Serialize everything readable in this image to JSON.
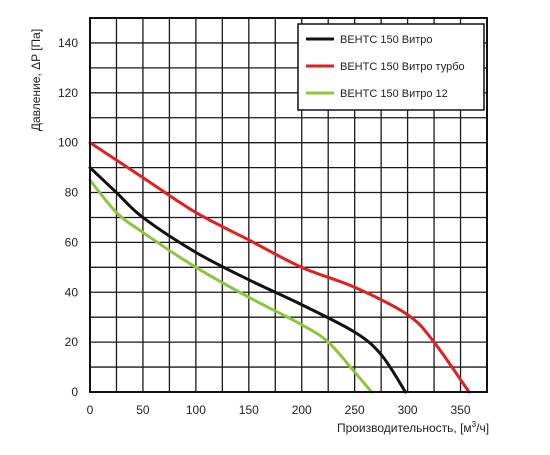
{
  "chart_data": {
    "type": "line",
    "xlabel_main": "Производительность, [м",
    "xlabel_sup": "3",
    "xlabel_end": "/ч]",
    "ylabel": "Давление, ΔP [Па]",
    "xlim": [
      0,
      375
    ],
    "ylim": [
      0,
      150
    ],
    "x_major_ticks": [
      0,
      50,
      100,
      150,
      200,
      250,
      300,
      350
    ],
    "x_tick_labels": [
      "0",
      "50",
      "100",
      "150",
      "200",
      "250",
      "300",
      "350"
    ],
    "y_major_ticks": [
      0,
      20,
      40,
      60,
      80,
      100,
      120,
      140
    ],
    "y_tick_labels": [
      "0",
      "20",
      "40",
      "60",
      "80",
      "100",
      "120",
      "140"
    ],
    "grid": true,
    "grid_minor_step_x": 25,
    "grid_minor_step_y": 10,
    "legend_position": "top-right",
    "series": [
      {
        "name": "ВЕНТС 150 Витро",
        "color": "#111111",
        "points": [
          [
            0,
            90
          ],
          [
            25,
            80
          ],
          [
            50,
            70
          ],
          [
            100,
            56
          ],
          [
            150,
            45
          ],
          [
            200,
            35
          ],
          [
            250,
            24
          ],
          [
            275,
            15
          ],
          [
            298,
            0
          ]
        ]
      },
      {
        "name": "ВЕНТС 150 Витро турбо",
        "color": "#e02020",
        "points": [
          [
            0,
            100
          ],
          [
            50,
            86
          ],
          [
            100,
            72
          ],
          [
            150,
            61
          ],
          [
            200,
            50
          ],
          [
            250,
            42
          ],
          [
            300,
            31
          ],
          [
            325,
            20
          ],
          [
            358,
            0
          ]
        ]
      },
      {
        "name": "ВЕНТС 150 Витро 12",
        "color": "#8cc63f",
        "points": [
          [
            0,
            85
          ],
          [
            25,
            72
          ],
          [
            50,
            64
          ],
          [
            100,
            50
          ],
          [
            150,
            38
          ],
          [
            200,
            27
          ],
          [
            225,
            20
          ],
          [
            250,
            8
          ],
          [
            266,
            0
          ]
        ]
      }
    ]
  }
}
